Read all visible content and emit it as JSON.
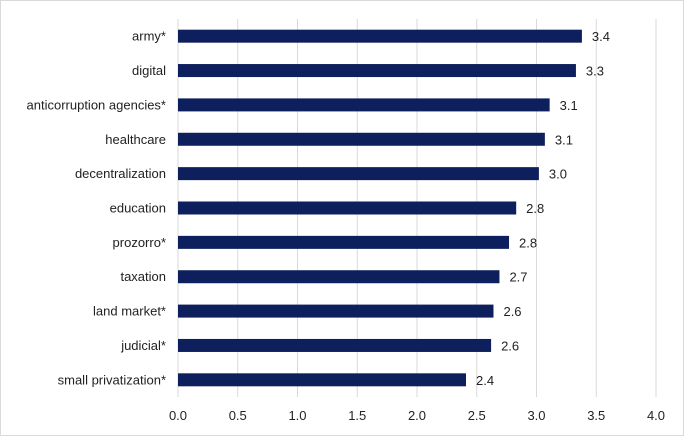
{
  "chart_data": {
    "type": "bar",
    "orientation": "horizontal",
    "categories": [
      "army*",
      "digital",
      "anticorruption agencies*",
      "healthcare",
      "decentralization",
      "education",
      "prozorro*",
      "taxation",
      "land market*",
      "judicial*",
      "small privatization*"
    ],
    "values": [
      3.38,
      3.33,
      3.11,
      3.07,
      3.02,
      2.83,
      2.77,
      2.69,
      2.64,
      2.62,
      2.41
    ],
    "data_labels": [
      "3.4",
      "3.3",
      "3.1",
      "3.1",
      "3.0",
      "2.8",
      "2.8",
      "2.7",
      "2.6",
      "2.6",
      "2.4"
    ],
    "xlim": [
      0,
      4
    ],
    "xticks": [
      "0.0",
      "0.5",
      "1.0",
      "1.5",
      "2.0",
      "2.5",
      "3.0",
      "3.5",
      "4.0"
    ],
    "grid": "vertical",
    "title": "",
    "xlabel": "",
    "ylabel": "",
    "colors": {
      "bar": "#0d1f5c",
      "grid": "#d9d9d9"
    }
  }
}
